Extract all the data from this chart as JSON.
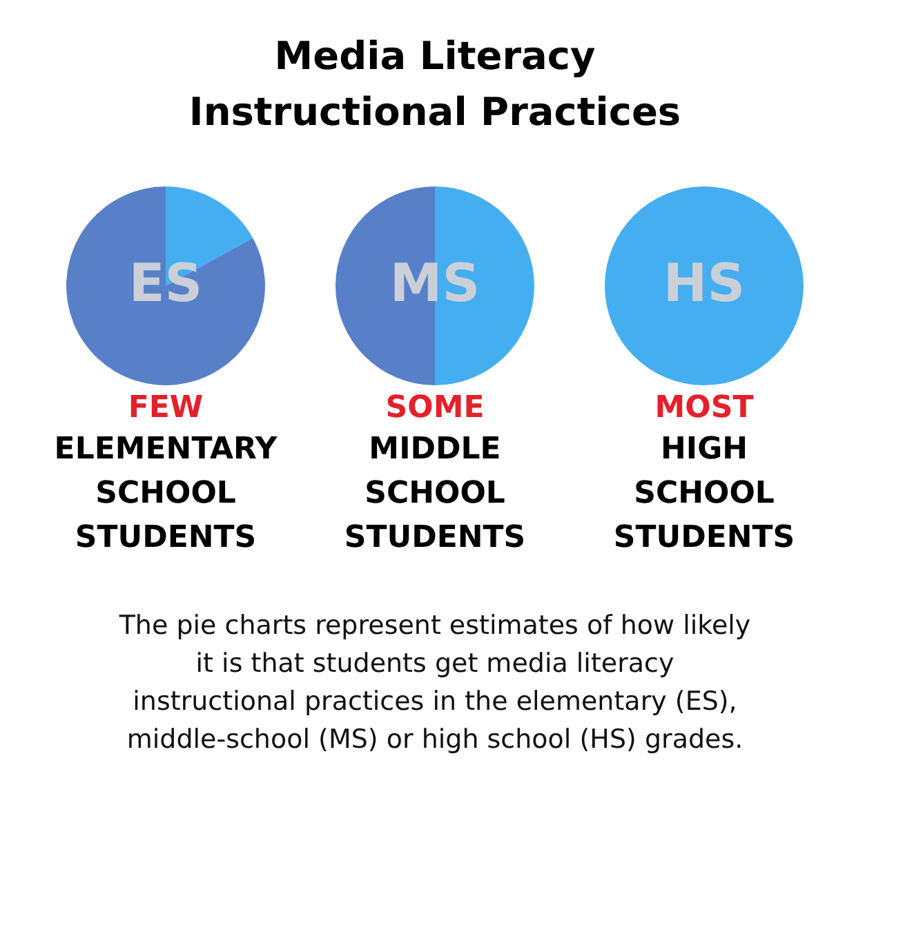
{
  "chart_data": [
    {
      "type": "other",
      "title": "Media Literacy Instructional Practices"
    },
    {
      "type": "pie",
      "categories": [
        null,
        null
      ],
      "values": [
        17,
        83
      ],
      "colors": [
        "#44aef0",
        "#5880c8"
      ],
      "annotations": [
        "ES",
        "FEW",
        "ELEMENTARY SCHOOL STUDENTS"
      ]
    },
    {
      "type": "pie",
      "categories": [
        null,
        null
      ],
      "values": [
        50,
        50
      ],
      "colors": [
        "#44aef0",
        "#5880c8"
      ],
      "annotations": [
        "MS",
        "SOME",
        "MIDDLE SCHOOL STUDENTS"
      ]
    },
    {
      "type": "pie",
      "categories": [
        null
      ],
      "values": [
        100
      ],
      "colors": [
        "#44aef0"
      ],
      "annotations": [
        "HS",
        "MOST",
        "HIGH SCHOOL STUDENTS"
      ]
    },
    {
      "type": "other",
      "annotations": [
        "The pie charts represent estimates of how likely it is that students get media literacy instructional practices in the elementary (ES), middle-school (MS) or high school (HS) grades."
      ]
    }
  ]
}
